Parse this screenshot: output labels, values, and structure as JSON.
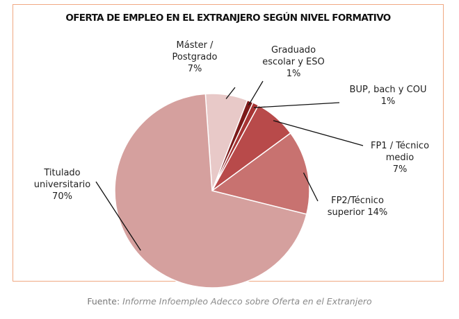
{
  "chart_data": {
    "type": "pie",
    "title": "OFERTA DE EMPLEO EN EL EXTRANJERO SEGÚN NIVEL FORMATIVO",
    "series": [
      {
        "name": "Titulado universitario",
        "value": 70,
        "label_lines": [
          "Titulado",
          "universitario",
          "70%"
        ],
        "color": "#d5a09e"
      },
      {
        "name": "Máster / Postgrado",
        "value": 7,
        "label_lines": [
          "Máster /",
          "Postgrado",
          "7%"
        ],
        "color": "#e8c9c8"
      },
      {
        "name": "Graduado escolar y ESO",
        "value": 1,
        "label_lines": [
          "Graduado",
          "escolar y ESO",
          "1%"
        ],
        "color": "#7c1a1a"
      },
      {
        "name": "BUP, bach y COU",
        "value": 1,
        "label_lines": [
          "BUP, bach y COU",
          "1%"
        ],
        "color": "#a73434"
      },
      {
        "name": "FP1 / Técnico medio",
        "value": 7,
        "label_lines": [
          "FP1 / Técnico",
          "medio",
          "7%"
        ],
        "color": "#b84a4a"
      },
      {
        "name": "FP2/Técnico superior",
        "value": 14,
        "label_lines": [
          "FP2/Técnico",
          "superior 14%"
        ],
        "color": "#c87270"
      }
    ]
  },
  "source": {
    "prefix": "Fuente:",
    "text": "Informe Infoempleo Adecco sobre Oferta en el Extranjero"
  }
}
